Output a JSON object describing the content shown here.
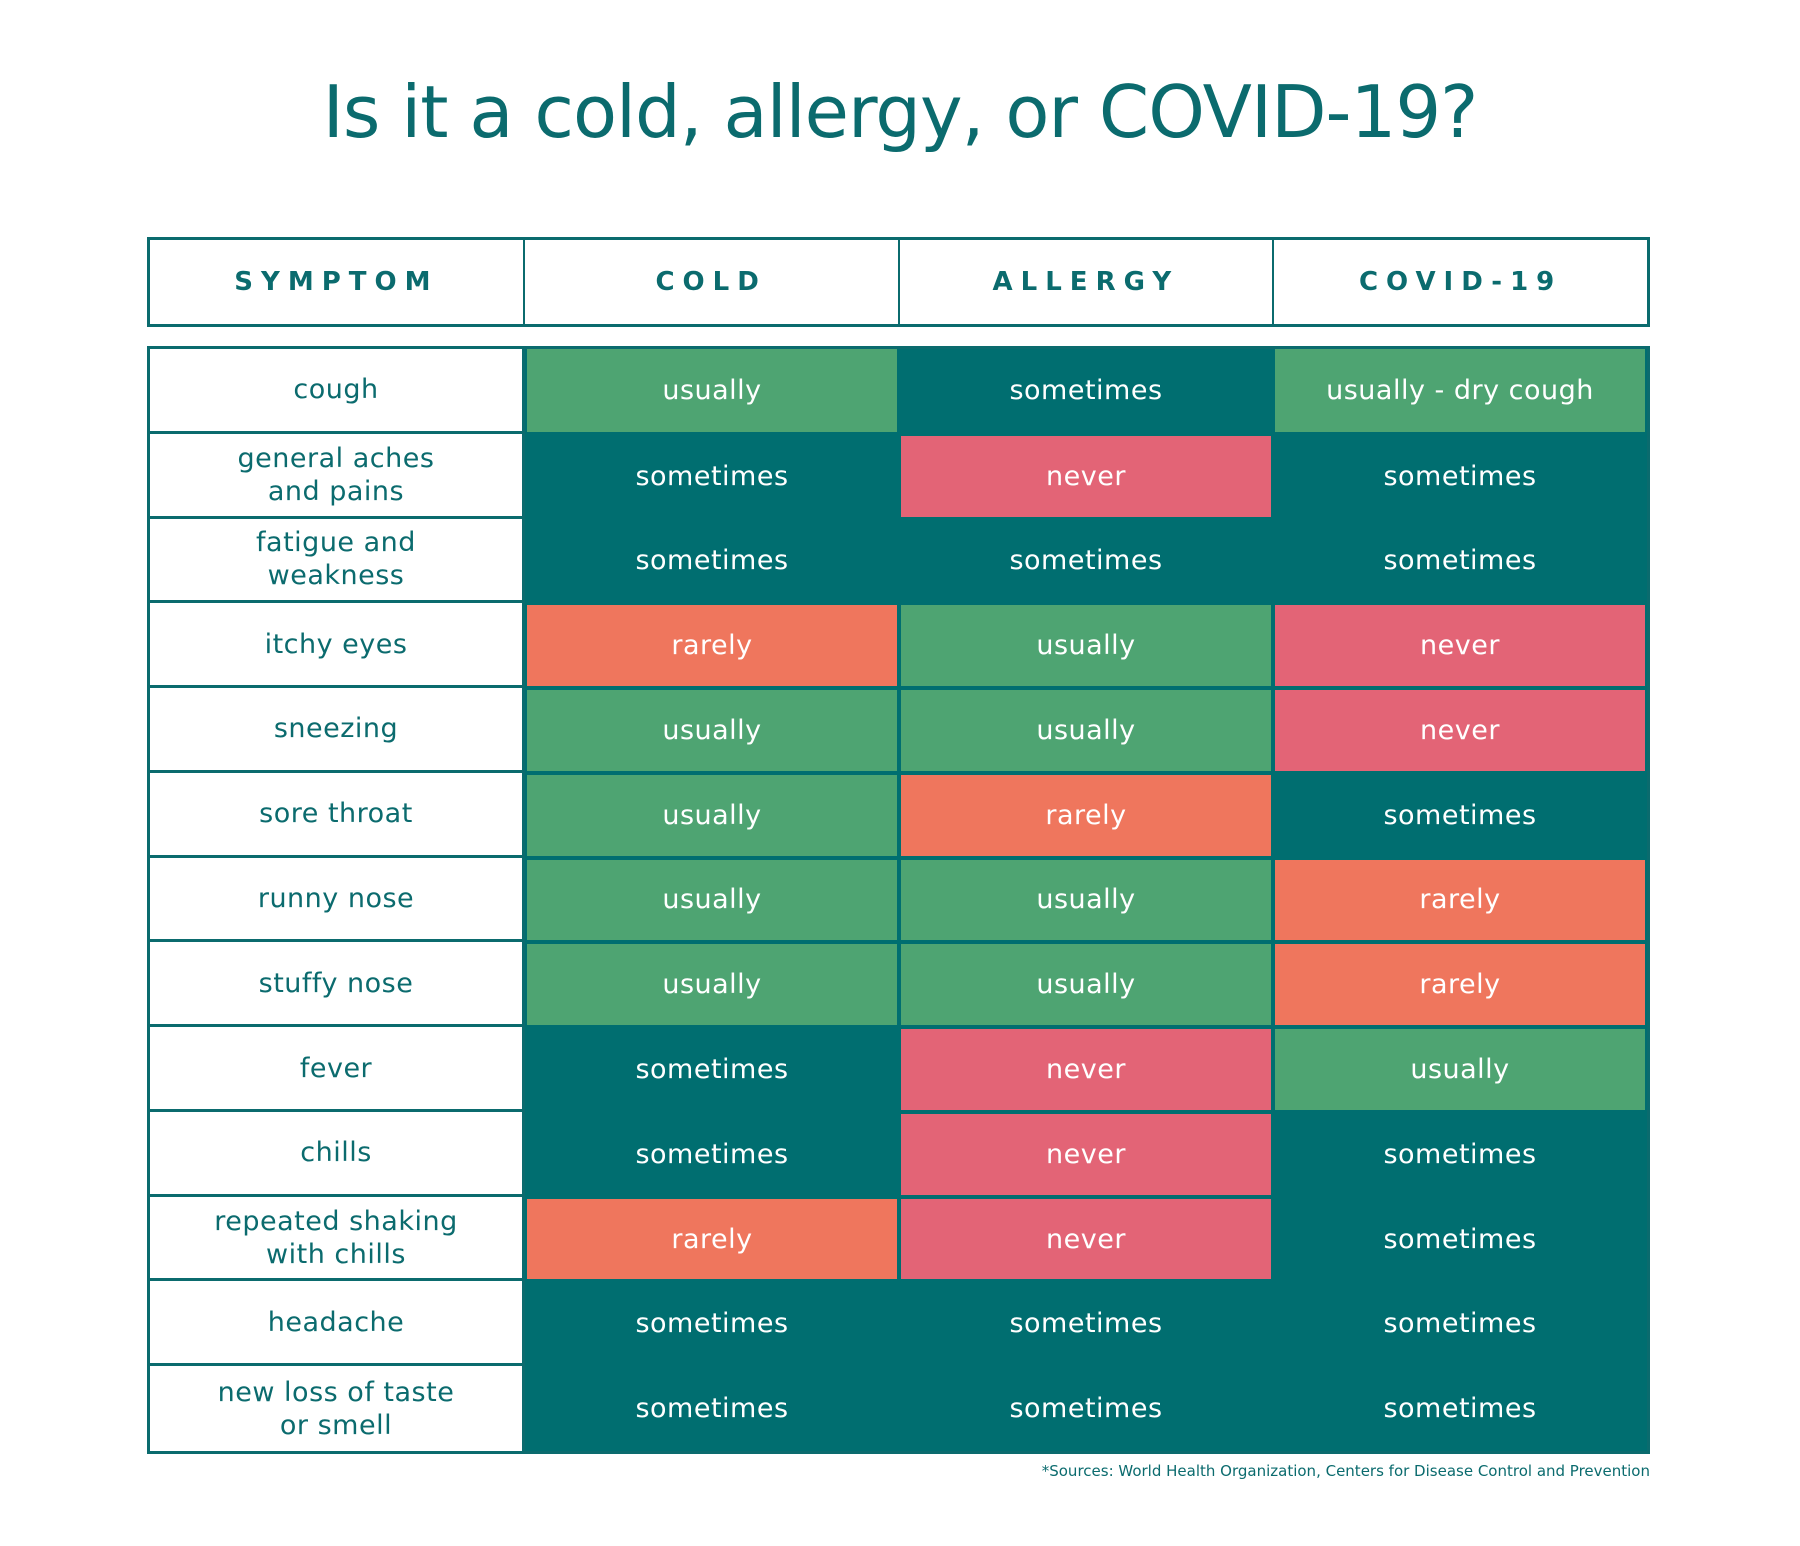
{
  "title": "Is it a cold, allergy, or COVID-19?",
  "colors": {
    "primary_text": "#0b6b6e",
    "usually": "#4ea472",
    "sometimes": "#006e70",
    "rarely": "#ef765d",
    "never": "#e36476",
    "symptom_bg": "#ffffff"
  },
  "table": {
    "headers": [
      "SYMPTOM",
      "COLD",
      "ALLERGY",
      "COVID-19"
    ],
    "rows": [
      {
        "symptom": "cough",
        "cold": "usually",
        "allergy": "sometimes",
        "covid": "usually - dry cough",
        "cold_level": "usually",
        "allergy_level": "sometimes",
        "covid_level": "usually"
      },
      {
        "symptom": "general aches\nand pains",
        "cold": "sometimes",
        "allergy": "never",
        "covid": "sometimes",
        "cold_level": "sometimes",
        "allergy_level": "never",
        "covid_level": "sometimes"
      },
      {
        "symptom": "fatigue and\nweakness",
        "cold": "sometimes",
        "allergy": "sometimes",
        "covid": "sometimes",
        "cold_level": "sometimes",
        "allergy_level": "sometimes",
        "covid_level": "sometimes"
      },
      {
        "symptom": "itchy eyes",
        "cold": "rarely",
        "allergy": "usually",
        "covid": "never",
        "cold_level": "rarely",
        "allergy_level": "usually",
        "covid_level": "never"
      },
      {
        "symptom": "sneezing",
        "cold": "usually",
        "allergy": "usually",
        "covid": "never",
        "cold_level": "usually",
        "allergy_level": "usually",
        "covid_level": "never"
      },
      {
        "symptom": "sore throat",
        "cold": "usually",
        "allergy": "rarely",
        "covid": "sometimes",
        "cold_level": "usually",
        "allergy_level": "rarely",
        "covid_level": "sometimes"
      },
      {
        "symptom": "runny nose",
        "cold": "usually",
        "allergy": "usually",
        "covid": "rarely",
        "cold_level": "usually",
        "allergy_level": "usually",
        "covid_level": "rarely"
      },
      {
        "symptom": "stuffy nose",
        "cold": "usually",
        "allergy": "usually",
        "covid": "rarely",
        "cold_level": "usually",
        "allergy_level": "usually",
        "covid_level": "rarely"
      },
      {
        "symptom": "fever",
        "cold": "sometimes",
        "allergy": "never",
        "covid": "usually",
        "cold_level": "sometimes",
        "allergy_level": "never",
        "covid_level": "usually"
      },
      {
        "symptom": "chills",
        "cold": "sometimes",
        "allergy": "never",
        "covid": "sometimes",
        "cold_level": "sometimes",
        "allergy_level": "never",
        "covid_level": "sometimes"
      },
      {
        "symptom": "repeated shaking\nwith chills",
        "cold": "rarely",
        "allergy": "never",
        "covid": "sometimes",
        "cold_level": "rarely",
        "allergy_level": "never",
        "covid_level": "sometimes"
      },
      {
        "symptom": "headache",
        "cold": "sometimes",
        "allergy": "sometimes",
        "covid": "sometimes",
        "cold_level": "sometimes",
        "allergy_level": "sometimes",
        "covid_level": "sometimes"
      },
      {
        "symptom": "new loss of taste\nor smell",
        "cold": "sometimes",
        "allergy": "sometimes",
        "covid": "sometimes",
        "cold_level": "sometimes",
        "allergy_level": "sometimes",
        "covid_level": "sometimes"
      }
    ]
  },
  "footnote": "*Sources: World Health Organization, Centers for Disease Control and Prevention"
}
